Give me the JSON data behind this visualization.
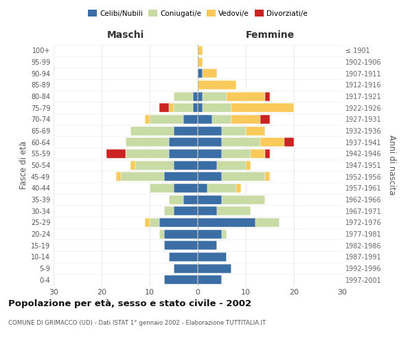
{
  "age_groups": [
    "0-4",
    "5-9",
    "10-14",
    "15-19",
    "20-24",
    "25-29",
    "30-34",
    "35-39",
    "40-44",
    "45-49",
    "50-54",
    "55-59",
    "60-64",
    "65-69",
    "70-74",
    "75-79",
    "80-84",
    "85-89",
    "90-94",
    "95-99",
    "100+"
  ],
  "birth_years": [
    "1997-2001",
    "1992-1996",
    "1987-1991",
    "1982-1986",
    "1977-1981",
    "1972-1976",
    "1967-1971",
    "1962-1966",
    "1957-1961",
    "1952-1956",
    "1947-1951",
    "1942-1946",
    "1937-1941",
    "1932-1936",
    "1927-1931",
    "1922-1926",
    "1917-1921",
    "1912-1916",
    "1907-1911",
    "1902-1906",
    "≤ 1901"
  ],
  "male_celibi": [
    7,
    5,
    6,
    7,
    7,
    8,
    5,
    3,
    5,
    7,
    5,
    6,
    6,
    5,
    3,
    1,
    1,
    0,
    0,
    0,
    0
  ],
  "male_coniugati": [
    0,
    0,
    0,
    0,
    1,
    2,
    2,
    3,
    5,
    9,
    8,
    9,
    9,
    9,
    7,
    4,
    4,
    0,
    0,
    0,
    0
  ],
  "male_vedovi": [
    0,
    0,
    0,
    0,
    0,
    1,
    0,
    0,
    0,
    1,
    1,
    0,
    0,
    0,
    1,
    1,
    0,
    0,
    0,
    0,
    0
  ],
  "male_divorziati": [
    0,
    0,
    0,
    0,
    0,
    0,
    0,
    0,
    0,
    0,
    0,
    4,
    0,
    0,
    0,
    2,
    0,
    0,
    0,
    0,
    0
  ],
  "female_celibi": [
    5,
    7,
    6,
    4,
    5,
    12,
    4,
    5,
    2,
    5,
    4,
    5,
    5,
    5,
    3,
    1,
    1,
    0,
    1,
    0,
    0
  ],
  "female_coniugati": [
    0,
    0,
    0,
    0,
    1,
    5,
    7,
    9,
    6,
    9,
    6,
    6,
    8,
    5,
    4,
    6,
    5,
    0,
    0,
    0,
    0
  ],
  "female_vedovi": [
    0,
    0,
    0,
    0,
    0,
    0,
    0,
    0,
    1,
    1,
    1,
    3,
    5,
    4,
    6,
    13,
    8,
    8,
    3,
    1,
    1
  ],
  "female_divorziati": [
    0,
    0,
    0,
    0,
    0,
    0,
    0,
    0,
    0,
    0,
    0,
    1,
    2,
    0,
    2,
    0,
    1,
    0,
    0,
    0,
    0
  ],
  "color_celibi": "#3a6ea5",
  "color_coniugati": "#c8dba4",
  "color_vedovi": "#f9c95a",
  "color_divorziati": "#cc2222",
  "title": "Popolazione per età, sesso e stato civile - 2002",
  "subtitle": "COMUNE DI GRIMACCO (UD) - Dati ISTAT 1° gennaio 2002 - Elaborazione TUTTITALIA.IT",
  "xlabel_left": "Maschi",
  "xlabel_right": "Femmine",
  "ylabel_left": "Fasce di età",
  "ylabel_right": "Anni di nascita",
  "xlim": 30,
  "bg_color": "#ffffff",
  "grid_color": "#cccccc"
}
